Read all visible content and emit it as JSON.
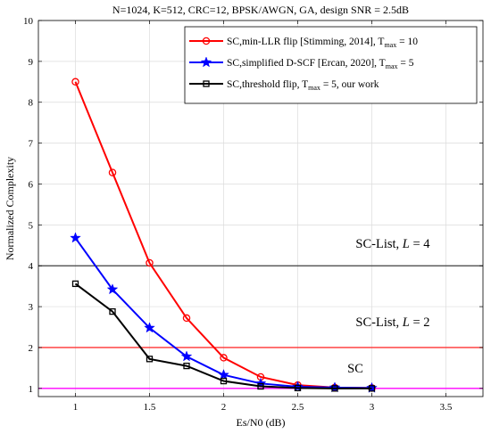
{
  "chart_data": {
    "type": "line",
    "title": "N=1024, K=512, CRC=12, BPSK/AWGN, GA, design SNR = 2.5dB",
    "xlabel": "Es/N0 (dB)",
    "ylabel": "Normalized Complexity",
    "xlim": [
      0.75,
      3.75
    ],
    "ylim": [
      0.8,
      10
    ],
    "xticks": [
      "1",
      "1.5",
      "2",
      "2.5",
      "3",
      "3.5"
    ],
    "yticks": [
      "1",
      "2",
      "3",
      "4",
      "5",
      "6",
      "7",
      "8",
      "9",
      "10"
    ],
    "grid": true,
    "legend_position": "top-right",
    "series": [
      {
        "name": "SC,min-LLR flip [Stimming, 2014], T",
        "name_sub": "max",
        "name_tail": " = 10",
        "color": "#ff0000",
        "marker": "circle",
        "x": [
          1,
          1.25,
          1.5,
          1.75,
          2,
          2.25,
          2.5,
          2.75,
          3
        ],
        "values": [
          8.5,
          6.28,
          4.07,
          2.72,
          1.75,
          1.28,
          1.08,
          1.02,
          1.01
        ]
      },
      {
        "name": "SC,simplified D-SCF [Ercan, 2020], T",
        "name_sub": "max",
        "name_tail": " = 5",
        "color": "#0000ff",
        "marker": "star",
        "x": [
          1,
          1.25,
          1.5,
          1.75,
          2,
          2.25,
          2.5,
          2.75,
          3
        ],
        "values": [
          4.68,
          3.42,
          2.48,
          1.78,
          1.33,
          1.12,
          1.04,
          1.02,
          1.01
        ]
      },
      {
        "name": "SC,threshold flip, T",
        "name_sub": "max",
        "name_tail": " = 5, our work",
        "color": "#000000",
        "marker": "square",
        "x": [
          1,
          1.25,
          1.5,
          1.75,
          2,
          2.25,
          2.5,
          2.75,
          3
        ],
        "values": [
          3.56,
          2.88,
          1.72,
          1.55,
          1.18,
          1.05,
          1.01,
          1.0,
          1.0
        ]
      }
    ],
    "reference_lines": [
      {
        "label": "SC-List, ",
        "label_var": "L",
        "label_tail": " = 4",
        "y": 4,
        "color": "#404040"
      },
      {
        "label": "SC-List, ",
        "label_var": "L",
        "label_tail": " = 2",
        "y": 2,
        "color": "#ff3333"
      },
      {
        "label": "SC",
        "label_var": "",
        "label_tail": "",
        "y": 1,
        "color": "#ff00ff"
      }
    ]
  }
}
